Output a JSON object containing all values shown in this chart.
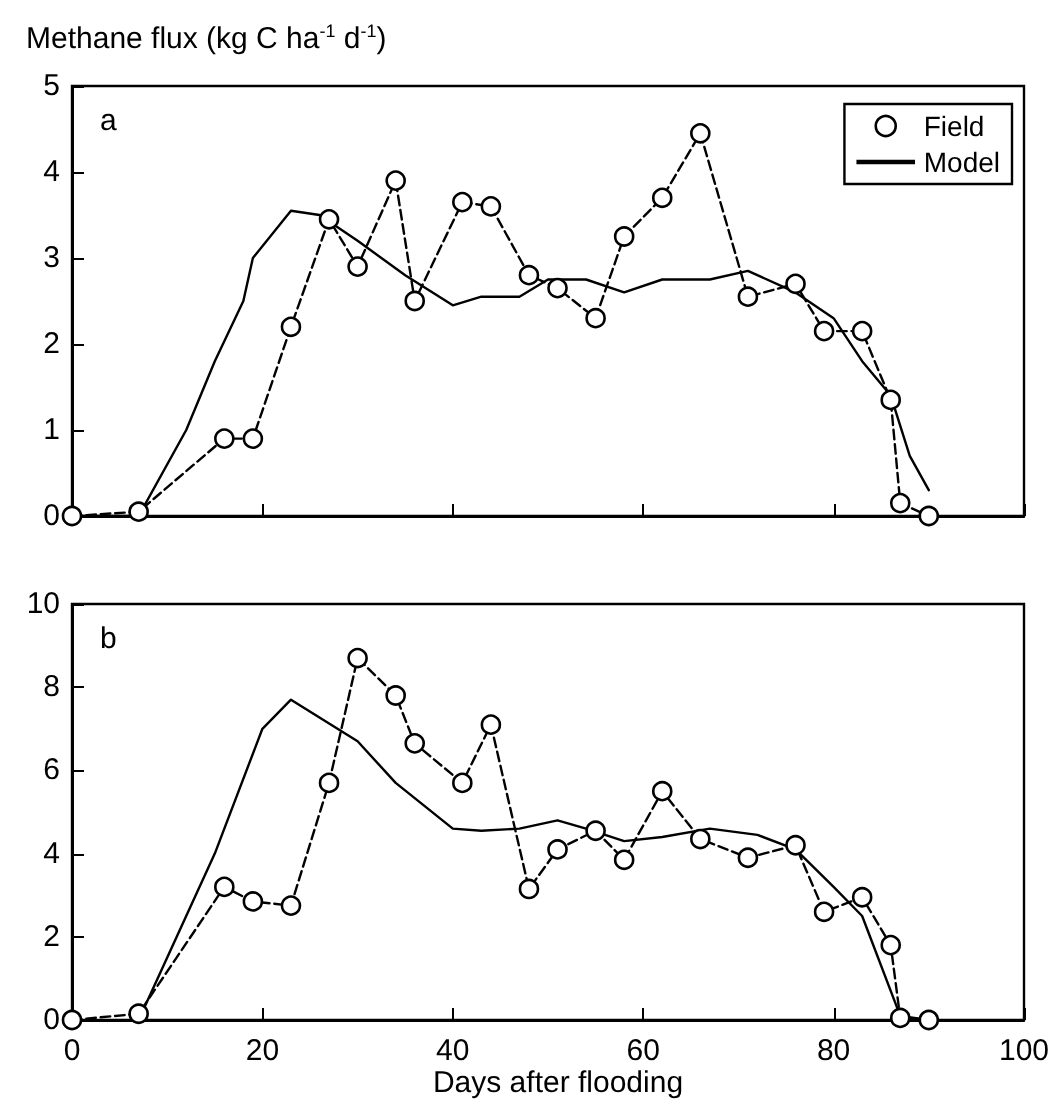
{
  "chart_data": [
    {
      "type": "line",
      "ylabel": "Methane flux (kg C ha$^{-1}$ d$^{-1}$)",
      "annotations": [
        "a"
      ],
      "xlim": [
        0,
        100
      ],
      "xticks": [
        0,
        20,
        40,
        60,
        80,
        100
      ],
      "ylim": [
        0,
        5
      ],
      "yticks": [
        0,
        1,
        2,
        3,
        4,
        5
      ],
      "tick_labels": "y",
      "grid": false,
      "legend": "top right",
      "series": [
        {
          "name": "Field",
          "color": "#000000",
          "marker": "circle",
          "line_style": "dashed",
          "x": [
            0,
            7,
            16,
            19,
            23,
            27,
            30,
            34,
            36,
            41,
            44,
            48,
            51,
            55,
            58,
            62,
            66,
            71,
            76,
            79,
            83,
            86,
            87,
            90
          ],
          "values": [
            0,
            0.05,
            0.9,
            0.9,
            2.2,
            3.45,
            2.9,
            3.9,
            2.5,
            3.65,
            3.6,
            2.8,
            2.65,
            2.3,
            3.25,
            3.7,
            4.45,
            2.55,
            2.7,
            2.15,
            2.15,
            1.35,
            0.15,
            0
          ]
        },
        {
          "name": "Model",
          "color": "#000000",
          "marker": "none",
          "line_style": "solid",
          "x": [
            0,
            7,
            12,
            15,
            18,
            19,
            23,
            26,
            30,
            35,
            40,
            43,
            47,
            50,
            54,
            58,
            62,
            67,
            71,
            76,
            80,
            83,
            86,
            88,
            90
          ],
          "values": [
            0,
            0,
            1.0,
            1.8,
            2.5,
            3.0,
            3.55,
            3.5,
            3.2,
            2.8,
            2.45,
            2.55,
            2.55,
            2.75,
            2.75,
            2.6,
            2.75,
            2.75,
            2.85,
            2.6,
            2.3,
            1.8,
            1.4,
            0.7,
            0.3
          ]
        }
      ]
    },
    {
      "type": "line",
      "xlabel": "Days after flooding",
      "annotations": [
        "b"
      ],
      "xlim": [
        0,
        100
      ],
      "xticks": [
        0,
        20,
        40,
        60,
        80,
        100
      ],
      "ylim": [
        0,
        10
      ],
      "yticks": [
        0,
        2,
        4,
        6,
        8,
        10
      ],
      "grid": false,
      "legend": false,
      "series": [
        {
          "color": "#000000",
          "marker": "circle",
          "line_style": "dashed",
          "x": [
            0,
            7,
            16,
            19,
            23,
            27,
            30,
            34,
            36,
            41,
            44,
            48,
            51,
            55,
            58,
            62,
            66,
            71,
            76,
            79,
            83,
            86,
            87,
            90
          ],
          "values": [
            0,
            0.15,
            3.2,
            2.85,
            2.75,
            5.7,
            8.7,
            7.8,
            6.65,
            5.7,
            7.1,
            3.15,
            4.1,
            4.55,
            3.85,
            5.5,
            4.35,
            3.9,
            4.2,
            2.6,
            2.95,
            1.8,
            0.05,
            0
          ]
        },
        {
          "color": "#000000",
          "marker": "none",
          "line_style": "solid",
          "x": [
            7,
            15,
            20,
            23,
            30,
            34,
            40,
            43,
            47,
            51,
            54,
            58,
            62,
            67,
            72,
            76,
            80,
            83,
            87,
            90
          ],
          "values": [
            0,
            4,
            7.0,
            7.7,
            6.7,
            5.7,
            4.6,
            4.55,
            4.6,
            4.8,
            4.6,
            4.3,
            4.4,
            4.6,
            4.45,
            4.1,
            3.2,
            2.5,
            0.1,
            0
          ]
        }
      ]
    }
  ]
}
